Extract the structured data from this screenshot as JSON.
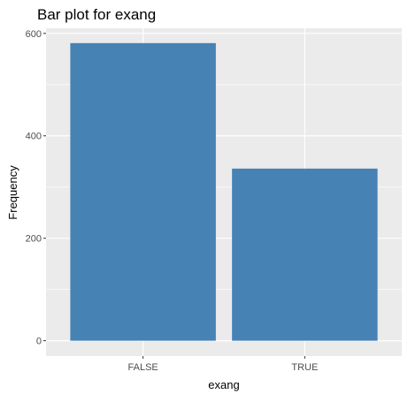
{
  "colors": {
    "panel_bg": "#ebebeb",
    "grid_major": "#ffffff",
    "bar_fill": "#4682b4",
    "tick_text": "#4d4d4d",
    "tick_mark": "#333333"
  },
  "chart_data": {
    "type": "bar",
    "title": "Bar plot for exang",
    "xlabel": "exang",
    "ylabel": "Frequency",
    "categories": [
      "FALSE",
      "TRUE"
    ],
    "values": [
      581,
      336
    ],
    "ylim": [
      -30,
      610
    ],
    "yticks": [
      0,
      200,
      400,
      600
    ],
    "grid": true,
    "legend": "none"
  }
}
